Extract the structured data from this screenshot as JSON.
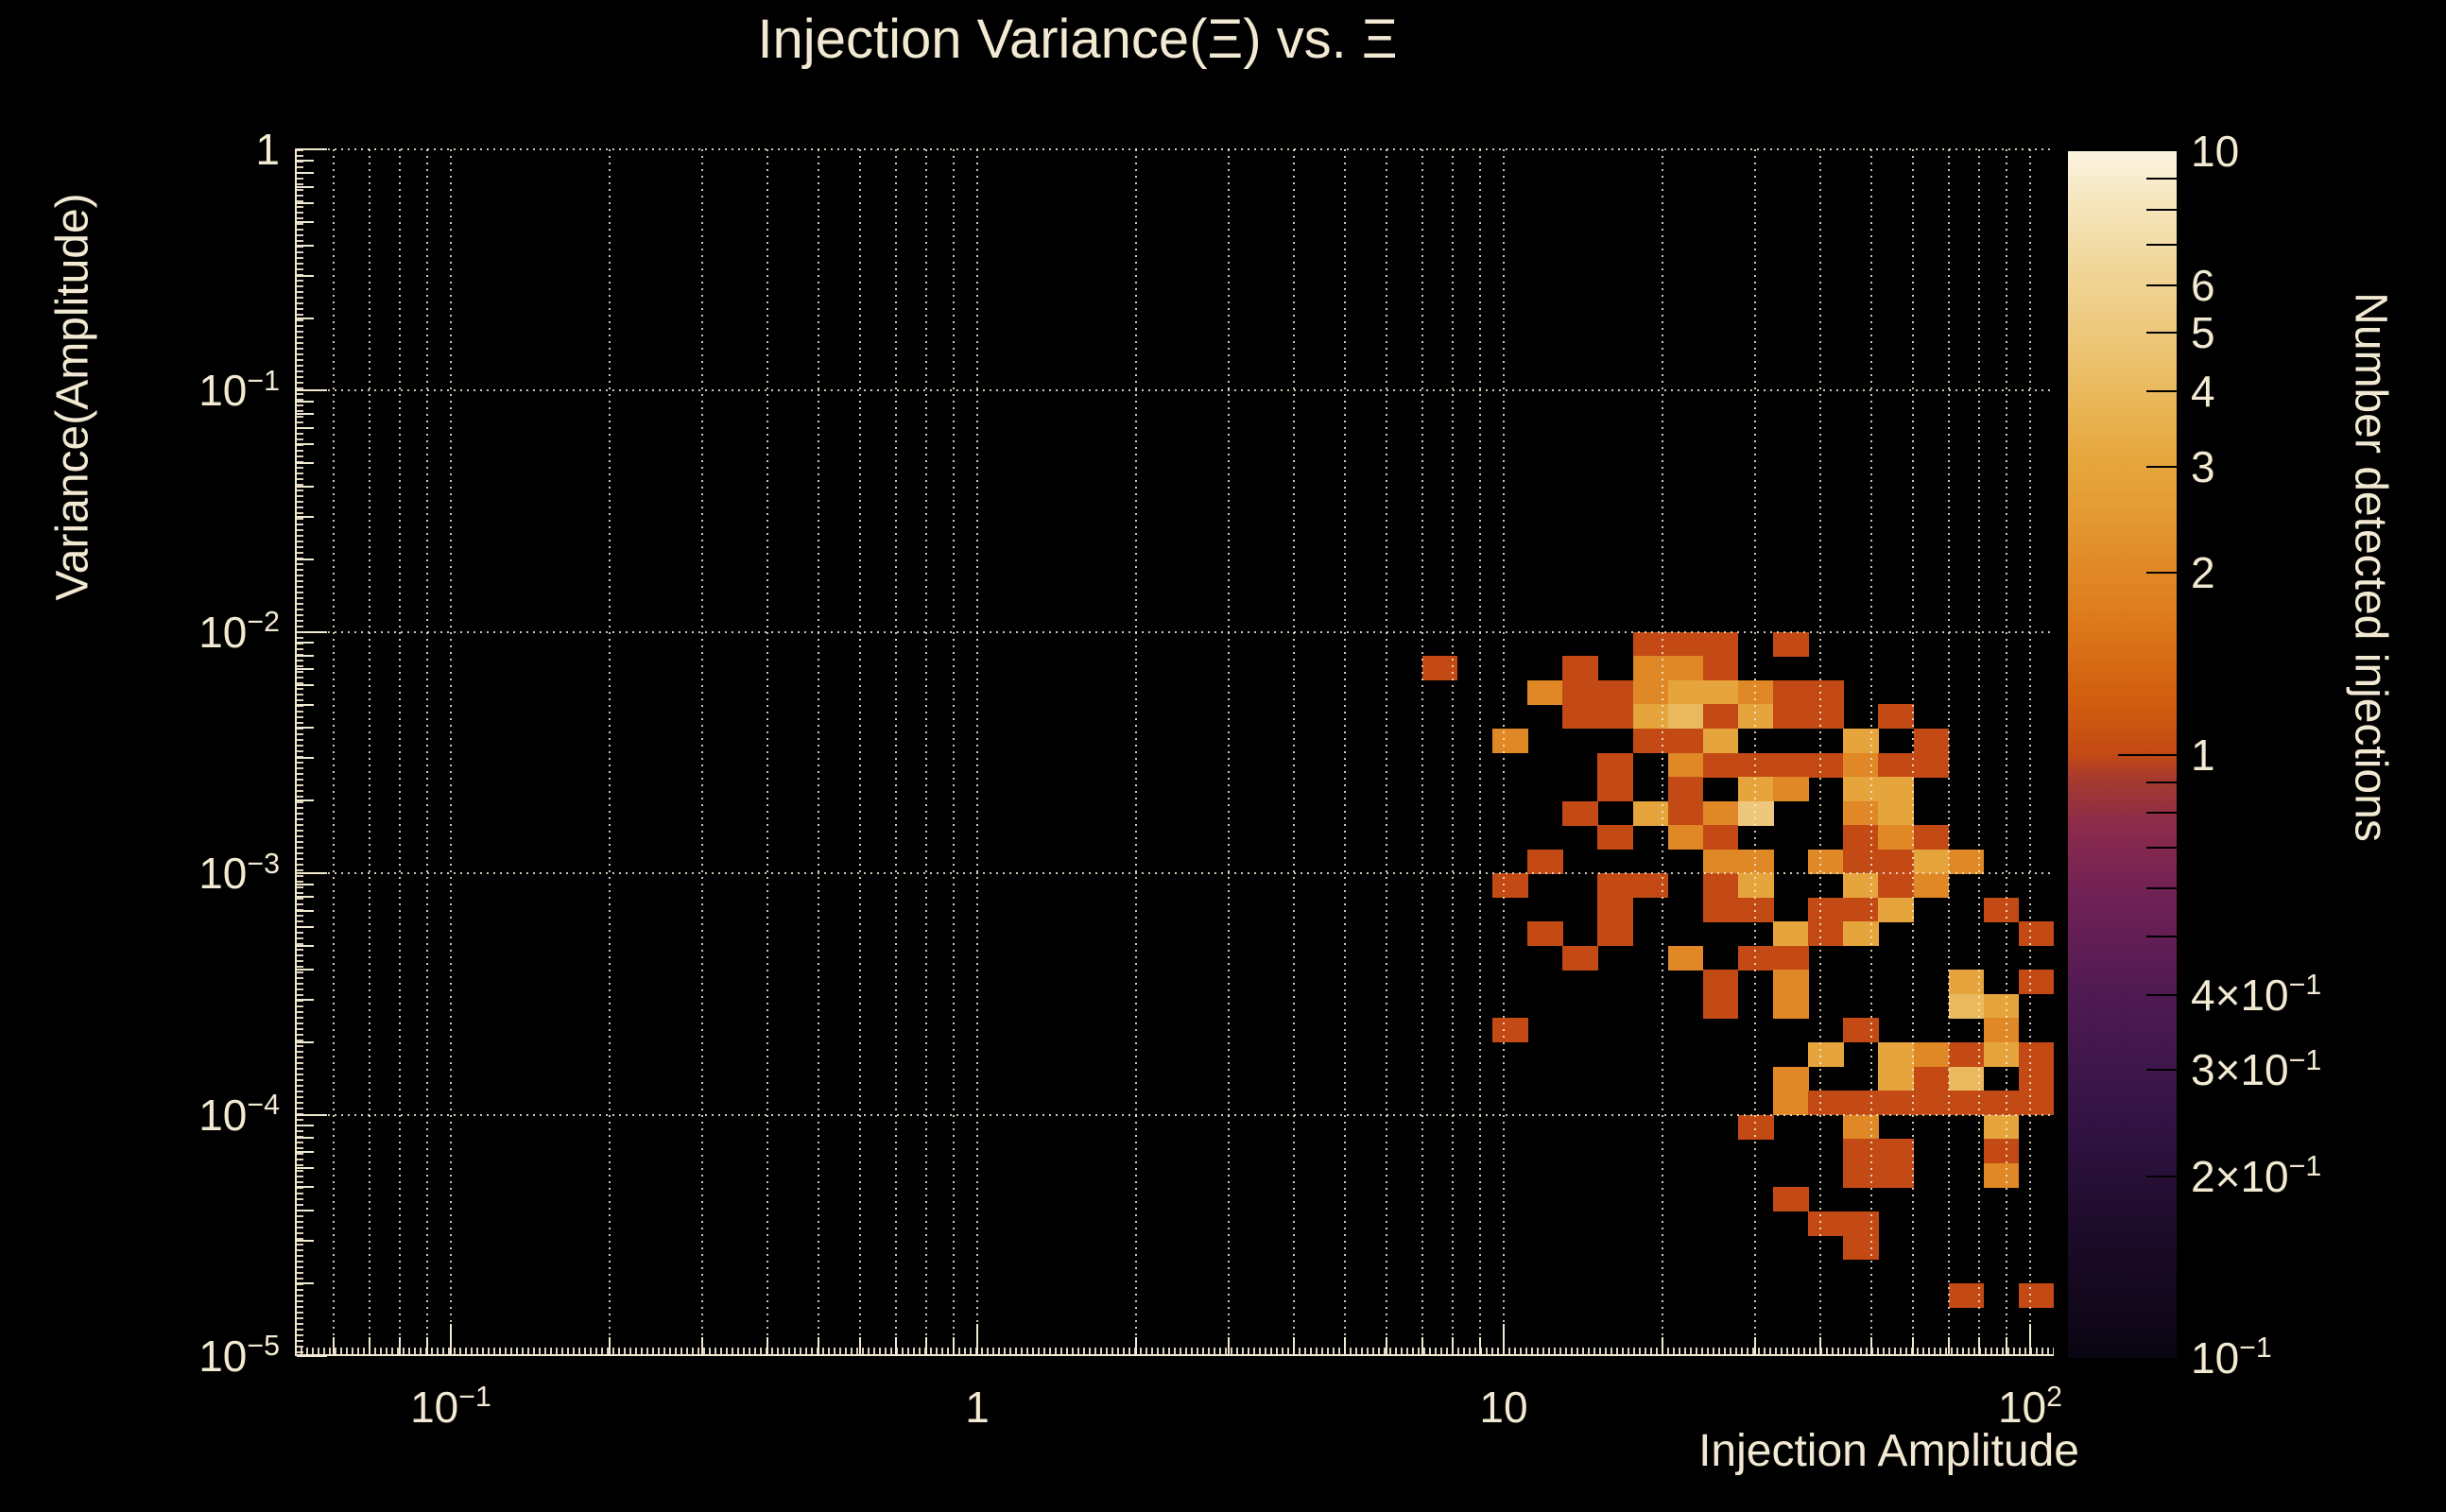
{
  "title": "Injection Variance(Ξ) vs. Ξ",
  "colors": {
    "background": "#000000",
    "text": "#f2e9d2",
    "grid": "rgba(242,234,212,0.85)"
  },
  "axes": {
    "x": {
      "label": "Injection Amplitude",
      "scale": "log",
      "range": [
        0.05,
        111
      ],
      "ticks": [
        {
          "value": 0.1,
          "base": "10",
          "exp": "−1"
        },
        {
          "value": 1,
          "base": "1",
          "exp": ""
        },
        {
          "value": 10,
          "base": "10",
          "exp": ""
        },
        {
          "value": 100,
          "base": "10",
          "exp": "2"
        }
      ]
    },
    "y": {
      "label": "Variance(Amplitude)",
      "scale": "log",
      "range": [
        1e-05,
        1
      ],
      "ticks": [
        {
          "value": 1,
          "base": "1",
          "exp": ""
        },
        {
          "value": 0.1,
          "base": "10",
          "exp": "−1"
        },
        {
          "value": 0.01,
          "base": "10",
          "exp": "−2"
        },
        {
          "value": 0.001,
          "base": "10",
          "exp": "−3"
        },
        {
          "value": 0.0001,
          "base": "10",
          "exp": "−4"
        },
        {
          "value": 1e-05,
          "base": "10",
          "exp": "−5"
        }
      ]
    }
  },
  "colorbar": {
    "label": "Number detected injections",
    "scale": "log",
    "range": [
      0.1,
      10
    ],
    "labeled_ticks": [
      {
        "value": 10,
        "base": "10",
        "exp": ""
      },
      {
        "value": 6,
        "base": "6",
        "exp": ""
      },
      {
        "value": 5,
        "base": "5",
        "exp": ""
      },
      {
        "value": 4,
        "base": "4",
        "exp": ""
      },
      {
        "value": 3,
        "base": "3",
        "exp": ""
      },
      {
        "value": 2,
        "base": "2",
        "exp": ""
      },
      {
        "value": 1,
        "base": "1",
        "exp": ""
      },
      {
        "value": 0.4,
        "base": "4×10",
        "exp": "−1"
      },
      {
        "value": 0.3,
        "base": "3×10",
        "exp": "−1"
      },
      {
        "value": 0.2,
        "base": "2×10",
        "exp": "−1"
      },
      {
        "value": 0.1,
        "base": "10",
        "exp": "−1"
      }
    ],
    "major_tick_values": [
      10,
      1,
      0.1
    ],
    "minor_tick_values": [
      9,
      8,
      7,
      0.9,
      0.8,
      0.7,
      0.6,
      0.5
    ]
  },
  "chart_data": {
    "type": "heatmap",
    "title": "Injection Variance(Ξ) vs. Ξ",
    "xlabel": "Injection Amplitude",
    "ylabel": "Variance(Amplitude)",
    "zlabel": "Number detected injections",
    "x_range": [
      0.05,
      111
    ],
    "y_range": [
      1e-05,
      1
    ],
    "z_range": [
      0.1,
      10
    ],
    "grid": "dotted, vertical at all log ticks, horizontal at decades",
    "x_bins": {
      "first_edge": 7.0,
      "bins_per_decade": 15,
      "count": 18
    },
    "y_bins": {
      "first_edge": 0.01,
      "bins_per_decade": 10,
      "count": 30,
      "direction": "descending"
    },
    "colormap": {
      "stops": [
        [
          0.0,
          "#0a0512"
        ],
        [
          0.1,
          "#1c0b28"
        ],
        [
          0.2,
          "#331345"
        ],
        [
          0.3,
          "#4f1a52"
        ],
        [
          0.38,
          "#6f2156"
        ],
        [
          0.44,
          "#8b2a4c"
        ],
        [
          0.48,
          "#a63a2e"
        ],
        [
          0.5,
          "#c34a14"
        ],
        [
          0.55,
          "#d2600f"
        ],
        [
          0.62,
          "#de7d1d"
        ],
        [
          0.7,
          "#e49a33"
        ],
        [
          0.75,
          "#e7a83f"
        ],
        [
          0.8,
          "#eab95c"
        ],
        [
          0.85,
          "#edc87c"
        ],
        [
          0.9,
          "#f0d596"
        ],
        [
          0.95,
          "#f5e4b8"
        ],
        [
          1.0,
          "#fbf3e0"
        ]
      ]
    },
    "cells": [
      [
        6,
        0,
        1
      ],
      [
        7,
        0,
        1
      ],
      [
        8,
        0,
        1
      ],
      [
        10,
        0,
        1
      ],
      [
        0,
        1,
        1
      ],
      [
        4,
        1,
        1
      ],
      [
        6,
        1,
        2
      ],
      [
        7,
        1,
        2
      ],
      [
        8,
        1,
        1
      ],
      [
        3,
        2,
        2
      ],
      [
        4,
        2,
        1
      ],
      [
        5,
        2,
        1
      ],
      [
        6,
        2,
        2
      ],
      [
        7,
        2,
        3
      ],
      [
        8,
        2,
        3
      ],
      [
        9,
        2,
        2
      ],
      [
        10,
        2,
        1
      ],
      [
        11,
        2,
        1
      ],
      [
        4,
        3,
        1
      ],
      [
        5,
        3,
        1
      ],
      [
        6,
        3,
        3
      ],
      [
        7,
        3,
        4
      ],
      [
        8,
        3,
        1
      ],
      [
        9,
        3,
        3
      ],
      [
        10,
        3,
        1
      ],
      [
        11,
        3,
        1
      ],
      [
        13,
        3,
        1
      ],
      [
        2,
        4,
        2
      ],
      [
        6,
        4,
        1
      ],
      [
        7,
        4,
        1
      ],
      [
        8,
        4,
        3
      ],
      [
        12,
        4,
        3
      ],
      [
        14,
        4,
        1
      ],
      [
        5,
        5,
        1
      ],
      [
        7,
        5,
        2
      ],
      [
        8,
        5,
        1
      ],
      [
        9,
        5,
        1
      ],
      [
        10,
        5,
        1
      ],
      [
        11,
        5,
        1
      ],
      [
        12,
        5,
        2
      ],
      [
        13,
        5,
        1
      ],
      [
        14,
        5,
        1
      ],
      [
        5,
        6,
        1
      ],
      [
        7,
        6,
        1
      ],
      [
        9,
        6,
        3
      ],
      [
        10,
        6,
        2
      ],
      [
        12,
        6,
        3
      ],
      [
        13,
        6,
        3
      ],
      [
        4,
        7,
        1
      ],
      [
        6,
        7,
        3
      ],
      [
        7,
        7,
        1
      ],
      [
        8,
        7,
        2
      ],
      [
        9,
        7,
        5
      ],
      [
        12,
        7,
        2
      ],
      [
        13,
        7,
        3
      ],
      [
        5,
        8,
        1
      ],
      [
        7,
        8,
        2
      ],
      [
        8,
        8,
        1
      ],
      [
        12,
        8,
        1
      ],
      [
        13,
        8,
        2
      ],
      [
        14,
        8,
        1
      ],
      [
        3,
        9,
        1
      ],
      [
        8,
        9,
        2
      ],
      [
        9,
        9,
        2
      ],
      [
        11,
        9,
        2
      ],
      [
        12,
        9,
        1
      ],
      [
        13,
        9,
        1
      ],
      [
        14,
        9,
        3
      ],
      [
        15,
        9,
        2
      ],
      [
        2,
        10,
        1
      ],
      [
        5,
        10,
        1
      ],
      [
        6,
        10,
        1
      ],
      [
        8,
        10,
        1
      ],
      [
        9,
        10,
        3
      ],
      [
        12,
        10,
        3
      ],
      [
        13,
        10,
        1
      ],
      [
        14,
        10,
        2
      ],
      [
        5,
        11,
        1
      ],
      [
        8,
        11,
        1
      ],
      [
        9,
        11,
        1
      ],
      [
        11,
        11,
        1
      ],
      [
        12,
        11,
        1
      ],
      [
        13,
        11,
        3
      ],
      [
        16,
        11,
        1
      ],
      [
        3,
        12,
        1
      ],
      [
        5,
        12,
        1
      ],
      [
        10,
        12,
        3
      ],
      [
        11,
        12,
        1
      ],
      [
        12,
        12,
        3
      ],
      [
        17,
        12,
        1
      ],
      [
        4,
        13,
        1
      ],
      [
        7,
        13,
        2
      ],
      [
        9,
        13,
        1
      ],
      [
        10,
        13,
        1
      ],
      [
        8,
        14,
        1
      ],
      [
        10,
        14,
        2
      ],
      [
        15,
        14,
        3
      ],
      [
        17,
        14,
        1
      ],
      [
        8,
        15,
        1
      ],
      [
        10,
        15,
        2
      ],
      [
        15,
        15,
        4
      ],
      [
        16,
        15,
        3
      ],
      [
        2,
        16,
        1
      ],
      [
        12,
        16,
        1
      ],
      [
        16,
        16,
        2
      ],
      [
        11,
        17,
        3
      ],
      [
        13,
        17,
        3
      ],
      [
        14,
        17,
        2
      ],
      [
        15,
        17,
        1
      ],
      [
        16,
        17,
        3
      ],
      [
        17,
        17,
        1
      ],
      [
        10,
        18,
        2
      ],
      [
        13,
        18,
        3
      ],
      [
        14,
        18,
        1
      ],
      [
        15,
        18,
        4
      ],
      [
        17,
        18,
        1
      ],
      [
        10,
        19,
        2
      ],
      [
        11,
        19,
        1
      ],
      [
        12,
        19,
        1
      ],
      [
        13,
        19,
        1
      ],
      [
        14,
        19,
        1
      ],
      [
        15,
        19,
        1
      ],
      [
        16,
        19,
        1
      ],
      [
        17,
        19,
        1
      ],
      [
        9,
        20,
        1
      ],
      [
        12,
        20,
        2
      ],
      [
        16,
        20,
        3
      ],
      [
        12,
        21,
        1
      ],
      [
        13,
        21,
        1
      ],
      [
        16,
        21,
        1
      ],
      [
        12,
        22,
        1
      ],
      [
        13,
        22,
        1
      ],
      [
        16,
        22,
        2
      ],
      [
        10,
        23,
        1
      ],
      [
        11,
        24,
        1
      ],
      [
        12,
        24,
        1
      ],
      [
        12,
        25,
        1
      ],
      [
        15,
        27,
        1
      ],
      [
        17,
        27,
        1
      ]
    ]
  }
}
